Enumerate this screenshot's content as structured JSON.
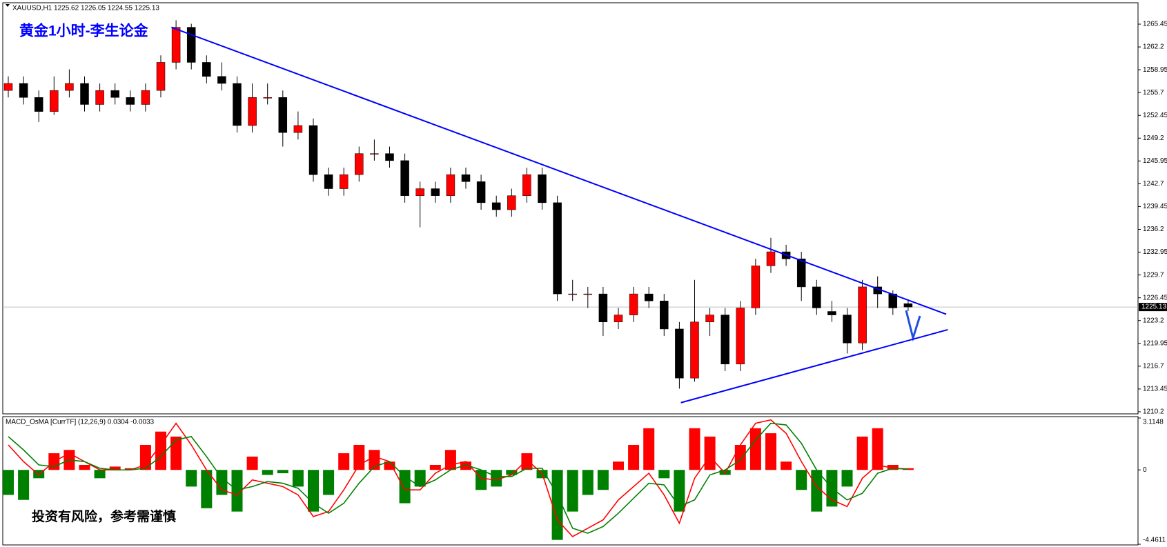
{
  "chart_data": {
    "type": "candlestick",
    "header": "XAUUSD,H1  1225.62 1226.05 1224.55 1225.13",
    "title": "黄金1小时-李生论金",
    "candles": [
      [
        1256,
        1258,
        1255,
        1257
      ],
      [
        1257,
        1258,
        1254,
        1255
      ],
      [
        1255,
        1256,
        1251.5,
        1253
      ],
      [
        1253,
        1258,
        1252.5,
        1256
      ],
      [
        1256,
        1259,
        1255,
        1257
      ],
      [
        1257,
        1258,
        1253,
        1254
      ],
      [
        1254,
        1257,
        1253,
        1256
      ],
      [
        1256,
        1257,
        1254,
        1255
      ],
      [
        1255,
        1256,
        1253,
        1254
      ],
      [
        1254,
        1257,
        1253,
        1256
      ],
      [
        1256,
        1261,
        1255,
        1260
      ],
      [
        1260,
        1266,
        1259,
        1265
      ],
      [
        1265,
        1265.5,
        1259,
        1260
      ],
      [
        1260,
        1261,
        1257,
        1258
      ],
      [
        1258,
        1260,
        1256,
        1257
      ],
      [
        1257,
        1258,
        1250,
        1251
      ],
      [
        1251,
        1257,
        1250,
        1255
      ],
      [
        1255,
        1257,
        1254,
        1255
      ],
      [
        1255,
        1256,
        1248,
        1250
      ],
      [
        1250,
        1253,
        1249,
        1251
      ],
      [
        1251,
        1252,
        1243,
        1244
      ],
      [
        1244,
        1245,
        1241,
        1242
      ],
      [
        1242,
        1245,
        1241,
        1244
      ],
      [
        1244,
        1248,
        1243,
        1247
      ],
      [
        1247,
        1249,
        1246,
        1247
      ],
      [
        1247,
        1248,
        1245,
        1246
      ],
      [
        1246,
        1247,
        1240,
        1241
      ],
      [
        1241,
        1243,
        1236.5,
        1242
      ],
      [
        1242,
        1243,
        1240,
        1241
      ],
      [
        1241,
        1245,
        1240,
        1244
      ],
      [
        1244,
        1245,
        1242,
        1243
      ],
      [
        1243,
        1244,
        1239,
        1240
      ],
      [
        1240,
        1241,
        1238,
        1239
      ],
      [
        1239,
        1242,
        1238,
        1241
      ],
      [
        1241,
        1245,
        1240,
        1244
      ],
      [
        1244,
        1245,
        1239,
        1240
      ],
      [
        1240,
        1241,
        1226,
        1227
      ],
      [
        1227,
        1229,
        1226,
        1227
      ],
      [
        1227,
        1228,
        1225,
        1227
      ],
      [
        1227,
        1228,
        1221,
        1223
      ],
      [
        1223,
        1225,
        1222,
        1224
      ],
      [
        1224,
        1228,
        1223,
        1227
      ],
      [
        1227,
        1228,
        1225,
        1226
      ],
      [
        1226,
        1227,
        1221,
        1222
      ],
      [
        1222,
        1223,
        1213.5,
        1215
      ],
      [
        1215,
        1229,
        1214.5,
        1223
      ],
      [
        1223,
        1225,
        1221,
        1224
      ],
      [
        1224,
        1225,
        1216,
        1217
      ],
      [
        1217,
        1226,
        1216,
        1225
      ],
      [
        1225,
        1232,
        1224,
        1231
      ],
      [
        1231,
        1235,
        1230,
        1233
      ],
      [
        1233,
        1234,
        1231,
        1232
      ],
      [
        1232,
        1233,
        1226,
        1228
      ],
      [
        1228,
        1229,
        1224,
        1225
      ],
      [
        1224.5,
        1226,
        1223,
        1224
      ],
      [
        1224,
        1225,
        1218.5,
        1220
      ],
      [
        1220,
        1229,
        1219,
        1228
      ],
      [
        1228,
        1229.5,
        1225,
        1227
      ],
      [
        1227,
        1227.5,
        1224,
        1225
      ],
      [
        1225.62,
        1226.05,
        1224.55,
        1225.13
      ]
    ],
    "up_color": "#ff0000",
    "down_color": "#000000",
    "ylim": [
      1210.0,
      1268.4
    ],
    "yticks": [
      1265.45,
      1262.2,
      1258.95,
      1255.7,
      1252.45,
      1249.2,
      1245.95,
      1242.7,
      1239.45,
      1236.2,
      1232.95,
      1229.7,
      1226.45,
      1223.2,
      1219.95,
      1216.7,
      1213.45,
      1210.2
    ],
    "current_price": 1225.13,
    "trendlines": [
      {
        "x": [
          10.7,
          61.5
        ],
        "y": [
          1265.0,
          1224.1
        ],
        "color": "#0000ff"
      },
      {
        "x": [
          44.1,
          61.6
        ],
        "y": [
          1211.5,
          1221.9
        ],
        "color": "#0000ff"
      }
    ],
    "indicator": {
      "title": "MACD_OsMA [CurrTF] (12,26,9) 0.0304 -0.0033",
      "ylim": [
        -4.4611,
        3.1148
      ],
      "yticks": [
        3.1148,
        0.0,
        -4.4611
      ],
      "histogram": [
        -1.5,
        -1.8,
        -0.5,
        1.0,
        1.2,
        0.3,
        -0.5,
        0.2,
        0.1,
        1.5,
        2.3,
        2.0,
        -1.0,
        -2.3,
        -1.5,
        -2.5,
        0.8,
        -0.3,
        -0.2,
        -1.0,
        -2.5,
        -1.5,
        1.0,
        1.5,
        1.2,
        0.5,
        -2.0,
        -1.0,
        0.3,
        1.2,
        0.5,
        -1.2,
        -1.0,
        -0.3,
        1.0,
        -0.5,
        -4.2,
        -2.5,
        -1.5,
        -1.2,
        0.5,
        1.5,
        2.5,
        -0.5,
        -2.5,
        2.5,
        2.0,
        -0.3,
        1.5,
        2.5,
        2.2,
        0.5,
        -1.2,
        -2.5,
        -2.2,
        -1.0,
        2.0,
        2.5,
        0.3,
        0.1
      ],
      "positive_color": "#ff0000",
      "negative_color": "#008000",
      "series": [
        {
          "color": "#ff0000",
          "values": [
            1.5,
            0.5,
            -0.3,
            0.5,
            1.0,
            0.5,
            0,
            0,
            0,
            0.3,
            1.5,
            2.8,
            1.5,
            0,
            -1.2,
            -1.5,
            -0.6,
            -0.8,
            -1.0,
            -1.5,
            -2.8,
            -2.5,
            -1.2,
            0.3,
            0.8,
            0.5,
            -1.2,
            -1.2,
            -0.2,
            0.3,
            0.5,
            -0.5,
            -0.6,
            -0.3,
            0.6,
            -0.2,
            -3.0,
            -4.0,
            -3.5,
            -3.0,
            -1.8,
            -1.0,
            -0.2,
            -1.5,
            -3.2,
            -0.5,
            0.8,
            -0.2,
            1.5,
            2.8,
            3.0,
            2.2,
            0.5,
            -1.0,
            -1.8,
            -2.2,
            -0.5,
            0.3,
            0.1,
            0.05
          ]
        },
        {
          "color": "#008000",
          "values": [
            2.0,
            1.2,
            0.3,
            0.2,
            0.6,
            0.5,
            0.1,
            0,
            0,
            0.1,
            0.8,
            1.8,
            2.0,
            0.8,
            -0.5,
            -1.2,
            -1.0,
            -0.7,
            -0.8,
            -1.1,
            -2.0,
            -2.6,
            -2.0,
            -0.8,
            0.2,
            0.5,
            -0.4,
            -1.0,
            -0.6,
            0,
            0.3,
            0,
            -0.4,
            -0.4,
            0.1,
            0.1,
            -1.5,
            -3.5,
            -3.8,
            -3.4,
            -2.6,
            -1.7,
            -0.8,
            -0.9,
            -2.2,
            -1.8,
            -0.3,
            0,
            0.6,
            1.8,
            2.8,
            2.7,
            1.6,
            0,
            -1.1,
            -1.8,
            -1.4,
            -0.2,
            0.1,
            0.05
          ]
        }
      ],
      "note": "投资有风险，参考需谨慎"
    }
  }
}
